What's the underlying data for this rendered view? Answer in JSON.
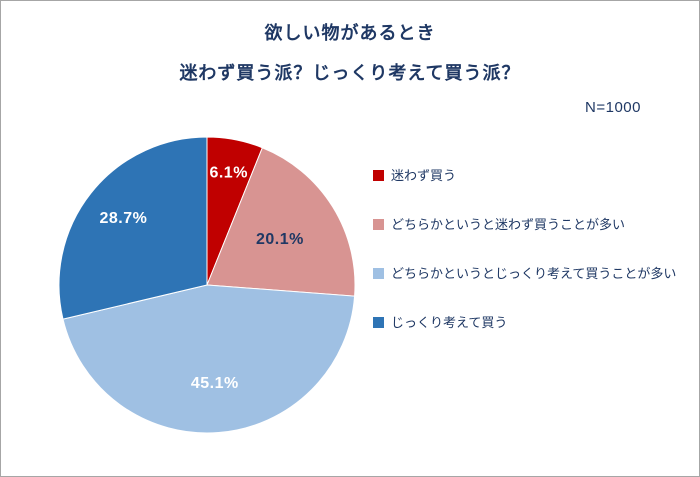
{
  "page": {
    "title_line1": "欲しい物があるとき",
    "title_line2": "迷わず買う派？じっくり考えて買う派？",
    "sample_size": "N=1000"
  },
  "chart_data": {
    "type": "pie",
    "title": "欲しい物があるとき 迷わず買う派？じっくり考えて買う派？",
    "n": 1000,
    "start_angle_deg": -90,
    "direction": "clockwise",
    "legend_position": "right",
    "categories": [
      "迷わず買う",
      "どちらかというと迷わず買うことが多い",
      "どちらかというとじっくり考えて買うことが多い",
      "じっくり考えて買う"
    ],
    "values": [
      6.1,
      20.1,
      45.1,
      28.7
    ],
    "slices": [
      {
        "label": "迷わず買う",
        "value": 6.1,
        "display": "6.1%",
        "color": "#C00000",
        "label_color": "#FFFFFF"
      },
      {
        "label": "どちらかというと迷わず買うことが多い",
        "value": 20.1,
        "display": "20.1%",
        "color": "#D89492",
        "label_color": "#1F3864"
      },
      {
        "label": "どちらかというとじっくり考えて買うことが多い",
        "value": 45.1,
        "display": "45.1%",
        "color": "#9FC0E3",
        "label_color": "#FFFFFF"
      },
      {
        "label": "じっくり考えて買う",
        "value": 28.7,
        "display": "28.7%",
        "color": "#2E74B5",
        "label_color": "#FFFFFF"
      }
    ]
  },
  "colors": {
    "title_text": "#1F3864",
    "border": "#A6A6A6",
    "slice_stroke": "#FFFFFF"
  }
}
